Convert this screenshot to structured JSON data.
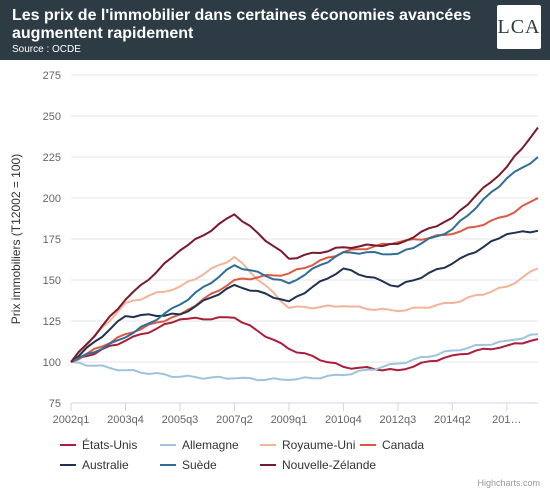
{
  "header": {
    "title": "Les prix de l'immobilier dans certaines économies avancées augmentent rapidement",
    "source": "Source : OCDE",
    "logo_text": "LCA"
  },
  "credits": "Highcharts.com",
  "chart_data": {
    "type": "line",
    "title": "Les prix de l'immobilier dans certaines économies avancées augmentent rapidement",
    "ylabel": "Prix immobiliers (T12002 = 100)",
    "xlabel": "",
    "ylim": [
      75,
      275
    ],
    "yticks": [
      75,
      100,
      125,
      150,
      175,
      200,
      225,
      250,
      275
    ],
    "x_tick_labels": [
      "2002q1",
      "2003q4",
      "2005q3",
      "2007q2",
      "2009q1",
      "2010q4",
      "2012q3",
      "2014q2",
      "201…"
    ],
    "grid": true,
    "legend_position": "bottom",
    "anchors_x": [
      0,
      7,
      14,
      21,
      28,
      35,
      42,
      49,
      56,
      60
    ],
    "series": [
      {
        "name": "États-Unis",
        "color": "#ab1e3a",
        "anchors": [
          100,
          113,
          126,
          127,
          108,
          97,
          95,
          104,
          110,
          114
        ]
      },
      {
        "name": "Allemagne",
        "color": "#9dc3dd",
        "anchors": [
          100,
          95,
          91,
          90,
          89,
          92,
          99,
          107,
          113,
          117
        ]
      },
      {
        "name": "Royaume-Uni",
        "color": "#f2b49a",
        "anchors": [
          100,
          136,
          146,
          164,
          133,
          134,
          131,
          136,
          146,
          157
        ]
      },
      {
        "name": "Canada",
        "color": "#db5a41",
        "anchors": [
          100,
          117,
          129,
          150,
          154,
          167,
          173,
          178,
          189,
          200
        ]
      },
      {
        "name": "Australie",
        "color": "#1e3250",
        "anchors": [
          100,
          128,
          129,
          147,
          137,
          157,
          146,
          160,
          178,
          180
        ]
      },
      {
        "name": "Suède",
        "color": "#2f6e96",
        "anchors": [
          100,
          115,
          135,
          159,
          148,
          167,
          166,
          181,
          212,
          225
        ]
      },
      {
        "name": "Nouvelle-Zélande",
        "color": "#781a2e",
        "anchors": [
          100,
          138,
          168,
          190,
          163,
          170,
          172,
          188,
          219,
          243
        ]
      }
    ]
  }
}
